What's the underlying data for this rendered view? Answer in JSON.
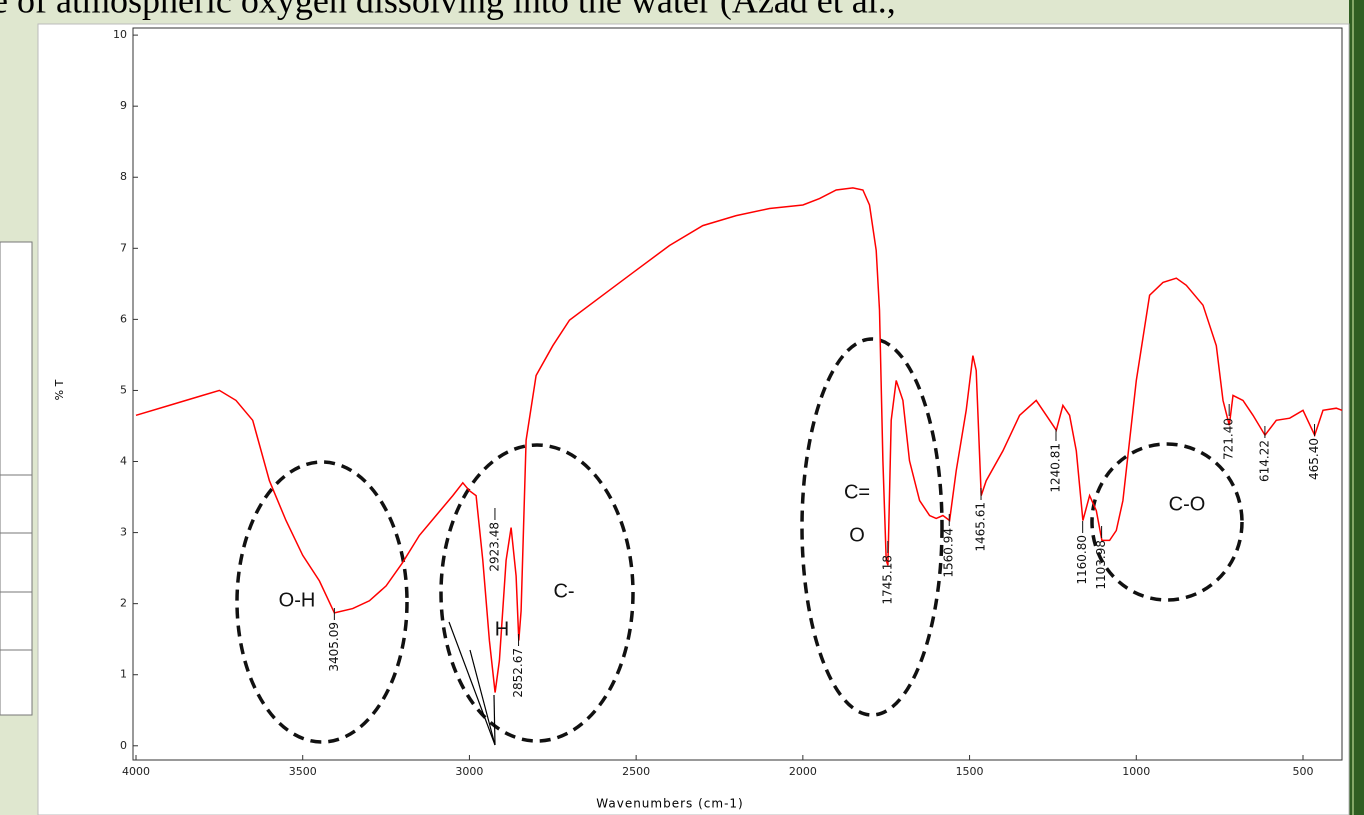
{
  "document": {
    "text": "e of atmospheric oxygen dissolving into the water (Azad et al.,"
  },
  "chart_data": {
    "type": "line",
    "xlabel": "Wavenumbers (cm-1)",
    "ylabel": "% T",
    "color": "#ff0000",
    "grid": false,
    "xlim": [
      4009,
      383
    ],
    "ylim": [
      -0.2,
      10.1
    ],
    "xticks": [
      4000,
      3500,
      3000,
      2500,
      2000,
      1500,
      1000,
      500
    ],
    "yticks": [
      0,
      1,
      2,
      3,
      4,
      5,
      6,
      7,
      8,
      9,
      10
    ],
    "x": [
      4000,
      3900,
      3800,
      3750,
      3700,
      3650,
      3600,
      3550,
      3500,
      3450,
      3405,
      3350,
      3300,
      3250,
      3200,
      3150,
      3100,
      3050,
      3020,
      3000,
      2980,
      2960,
      2940,
      2923,
      2910,
      2890,
      2875,
      2860,
      2852,
      2845,
      2830,
      2800,
      2750,
      2700,
      2600,
      2500,
      2400,
      2300,
      2200,
      2100,
      2000,
      1950,
      1900,
      1850,
      1820,
      1800,
      1780,
      1770,
      1760,
      1750,
      1745,
      1735,
      1720,
      1700,
      1680,
      1650,
      1620,
      1600,
      1580,
      1560,
      1540,
      1510,
      1490,
      1480,
      1465,
      1450,
      1400,
      1350,
      1300,
      1270,
      1240,
      1220,
      1200,
      1180,
      1160,
      1140,
      1120,
      1103,
      1080,
      1060,
      1040,
      1000,
      960,
      920,
      880,
      850,
      800,
      760,
      740,
      721,
      710,
      680,
      650,
      614,
      580,
      540,
      500,
      465,
      440,
      400,
      383
    ],
    "values": [
      4.65,
      4.79,
      4.93,
      5.0,
      4.86,
      4.58,
      3.73,
      3.17,
      2.68,
      2.32,
      1.87,
      1.93,
      2.04,
      2.25,
      2.58,
      2.96,
      3.24,
      3.52,
      3.7,
      3.59,
      3.52,
      2.61,
      1.48,
      0.75,
      1.2,
      2.61,
      3.07,
      2.39,
      1.48,
      1.9,
      4.3,
      5.21,
      5.63,
      5.99,
      6.34,
      6.69,
      7.04,
      7.32,
      7.46,
      7.56,
      7.61,
      7.7,
      7.82,
      7.85,
      7.82,
      7.61,
      6.97,
      6.13,
      4.01,
      2.61,
      2.54,
      4.58,
      5.14,
      4.86,
      4.01,
      3.45,
      3.24,
      3.2,
      3.24,
      3.17,
      3.87,
      4.72,
      5.49,
      5.28,
      3.52,
      3.73,
      4.15,
      4.65,
      4.86,
      4.65,
      4.44,
      4.79,
      4.65,
      4.15,
      3.17,
      3.52,
      3.31,
      2.89,
      2.89,
      3.03,
      3.45,
      5.14,
      6.34,
      6.52,
      6.58,
      6.48,
      6.2,
      5.63,
      4.86,
      4.51,
      4.93,
      4.86,
      4.65,
      4.37,
      4.58,
      4.61,
      4.72,
      4.37,
      4.72,
      4.75,
      4.72
    ],
    "peaks": [
      {
        "value": 3405.09,
        "label": "3405.09"
      },
      2923.48,
      2852.67,
      1745.18,
      1560.94,
      1465.61,
      1240.81,
      {
        "value": 1160.8,
        "label": "1160.80"
      },
      1103.98,
      {
        "value": 721.4,
        "label": "721.40"
      },
      614.22,
      {
        "value": 465.4,
        "label": "465.40"
      }
    ],
    "annotations": [
      "O-H",
      "C-",
      "H",
      "C=",
      "O",
      "C-O"
    ]
  }
}
